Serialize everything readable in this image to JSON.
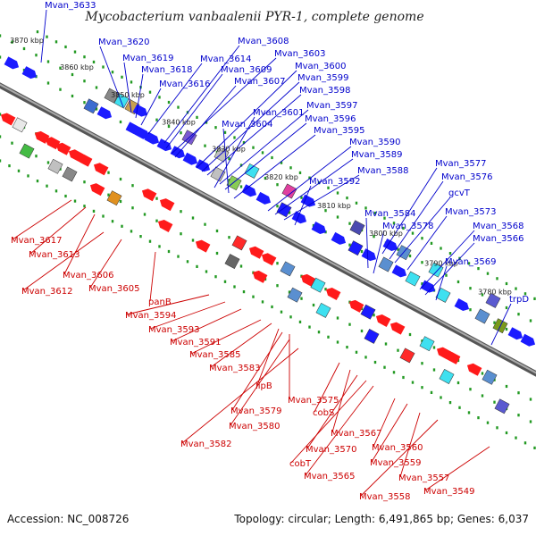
{
  "title": "Mycobacterium vanbaalenii PYR-1, complete genome",
  "accession": "Accession: NC_008726",
  "topology": "Topology: circular; Length: 6,491,865 bp; Genes: 6,037",
  "colors": {
    "forward_label": "#0000cc",
    "reverse_label": "#cc0000",
    "forward_gene": "#1b1bff",
    "reverse_gene": "#ff1a1a",
    "backbone": "#888888",
    "tick": "#229922"
  },
  "scale_labels": [
    "3870 kbp",
    "3860 kbp",
    "3850 kbp",
    "3840 kbp",
    "3830 kbp",
    "3820 kbp",
    "3810 kbp",
    "3800 kbp",
    "3790 kbp",
    "3780 kbp"
  ],
  "forward_labels": [
    "Mvan_3633",
    "Mvan_3620",
    "Mvan_3619",
    "Mvan_3618",
    "Mvan_3616",
    "Mvan_3614",
    "Mvan_3608",
    "Mvan_3609",
    "Mvan_3603",
    "Mvan_3607",
    "Mvan_3600",
    "Mvan_3599",
    "Mvan_3598",
    "Mvan_3597",
    "Mvan_3601",
    "Mvan_3596",
    "Mvan_3604",
    "Mvan_3595",
    "Mvan_3590",
    "Mvan_3589",
    "Mvan_3588",
    "Mvan_3592",
    "Mvan_3577",
    "Mvan_3576",
    "gcvT",
    "Mvan_3573",
    "Mvan_3584",
    "Mvan_3578",
    "Mvan_3568",
    "Mvan_3566",
    "Mvan_3569",
    "trpD"
  ],
  "reverse_labels": [
    "Mvan_3617",
    "Mvan_3613",
    "Mvan_3606",
    "Mvan_3612",
    "Mvan_3605",
    "panB",
    "Mvan_3594",
    "Mvan_3593",
    "Mvan_3591",
    "Mvan_3585",
    "Mvan_3583",
    "lipB",
    "Mvan_3575",
    "Mvan_3579",
    "Mvan_3580",
    "Mvan_3582",
    "cobS",
    "Mvan_3567",
    "Mvan_3570",
    "cobT",
    "Mvan_3565",
    "Mvan_3560",
    "Mvan_3559",
    "Mvan_3557",
    "Mvan_3558",
    "Mvan_3549"
  ]
}
